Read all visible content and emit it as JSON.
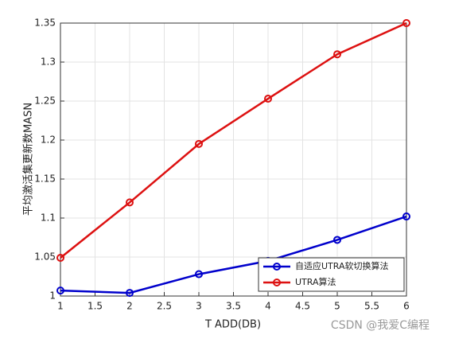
{
  "chart_data": {
    "type": "line",
    "x_label": "T ADD(DB)",
    "y_label": "平均激活集更新数MASN",
    "x": [
      1,
      2,
      3,
      4,
      5,
      6
    ],
    "series": [
      {
        "name": "自适应UTRA软切换算法",
        "color": "#0000cc",
        "values": [
          1.007,
          1.004,
          1.028,
          1.045,
          1.072,
          1.102
        ]
      },
      {
        "name": "UTRA算法",
        "color": "#dd1111",
        "values": [
          1.049,
          1.12,
          1.195,
          1.253,
          1.31,
          1.35
        ]
      }
    ],
    "xlim": [
      1,
      6
    ],
    "xticks": [
      1,
      1.5,
      2,
      2.5,
      3,
      3.5,
      4,
      4.5,
      5,
      5.5,
      6
    ],
    "ylim": [
      1,
      1.35
    ],
    "yticks": [
      1,
      1.05,
      1.1,
      1.15,
      1.2,
      1.25,
      1.3,
      1.35
    ],
    "grid": true,
    "legend": "lower right",
    "annotation": "CSDN @我爱C编程"
  }
}
